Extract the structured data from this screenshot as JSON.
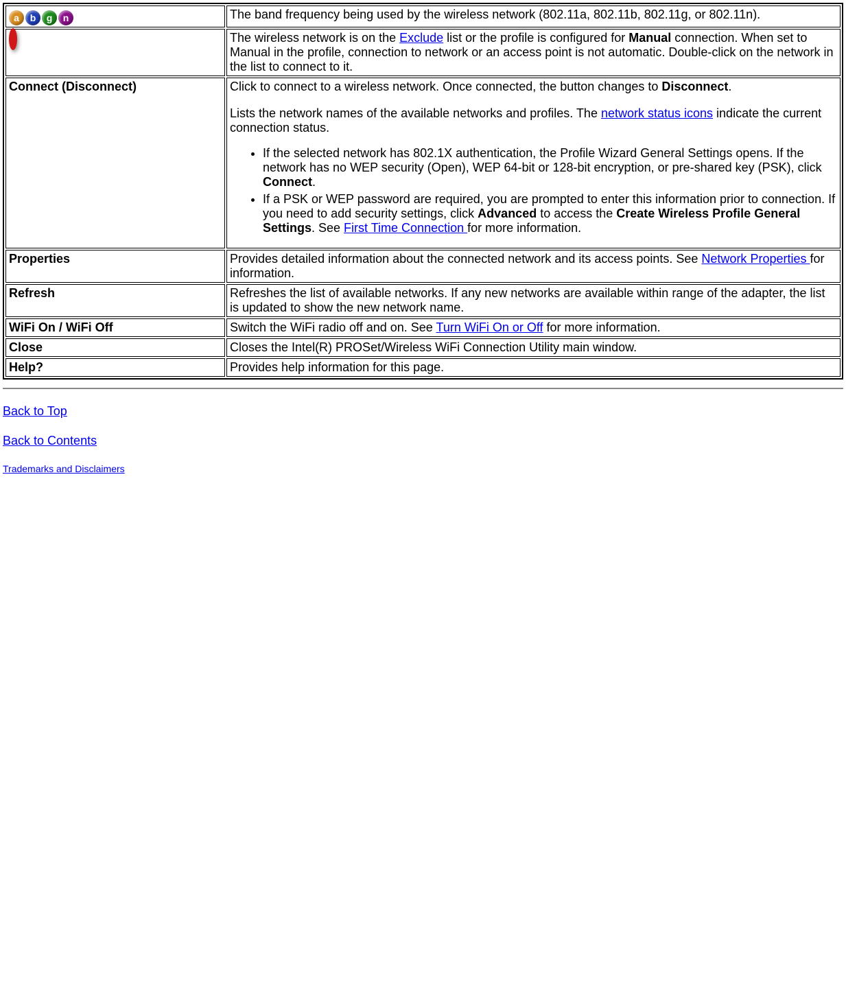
{
  "palette": {
    "link_color": "#0000ee",
    "text_color": "#000000",
    "background": "#ffffff",
    "border_color": "#000000"
  },
  "icons": {
    "abgn": {
      "a": {
        "letter": "a",
        "bg": "#d98c1f"
      },
      "b": {
        "letter": "b",
        "bg": "#1e3fb5"
      },
      "g": {
        "letter": "g",
        "bg": "#1a8a1a"
      },
      "n": {
        "letter": "n",
        "bg": "#8a0f8a"
      }
    },
    "prohibit_color": "#d01818"
  },
  "rows": {
    "band": {
      "desc": "The band frequency being used by the wireless network (802.11a, 802.11b, 802.11g, or 802.11n)."
    },
    "exclude": {
      "pre": "The wireless network is on the ",
      "link1": "Exclude",
      "mid1": " list or the profile is configured for ",
      "bold1": "Manual",
      "post": " connection. When set to Manual in the profile, connection to network or an access point is not automatic. Double-click on the network in the list to connect to it."
    },
    "connect": {
      "name": "Connect (Disconnect)",
      "p1_pre": "Click to connect to a wireless network. Once connected, the button changes to ",
      "p1_bold": "Disconnect",
      "p1_post": ".",
      "p2_pre": "Lists the network names of the available networks and profiles. The ",
      "p2_link": "network status icons",
      "p2_post": " indicate the current connection status.",
      "li1_pre": "If the selected network has 802.1X authentication, the Profile Wizard General Settings opens. If the network has no WEP security (Open), WEP 64-bit or 128-bit encryption, or pre-shared key (PSK), click ",
      "li1_bold": "Connect",
      "li1_post": ".",
      "li2_pre": "If a PSK or WEP password are required, you are prompted to enter this information prior to connection. If you need to add security settings, click ",
      "li2_bold1": "Advanced",
      "li2_mid": " to access the ",
      "li2_bold2": "Create Wireless Profile General Settings",
      "li2_mid2": ". See ",
      "li2_link": "First Time Connection ",
      "li2_post": "for more information."
    },
    "properties": {
      "name": "Properties",
      "pre": "Provides detailed information about the connected network and its access points. See ",
      "link": "Network Properties ",
      "post": "for information."
    },
    "refresh": {
      "name": "Refresh",
      "desc": "Refreshes the list of available networks. If any new networks are available within range of the adapter, the list is updated to show the new network name."
    },
    "wifi": {
      "name": "WiFi On / WiFi Off",
      "pre": "Switch the WiFi radio off and on. See ",
      "link": "Turn WiFi On or Off",
      "post": " for more information."
    },
    "close": {
      "name": "Close",
      "desc": "Closes the Intel(R) PROSet/Wireless WiFi Connection Utility main window."
    },
    "help": {
      "name": "Help?",
      "desc": "Provides help information for this page."
    }
  },
  "footer": {
    "back_top": "Back to Top",
    "back_contents": "Back to Contents",
    "trademarks": "Trademarks and Disclaimers"
  }
}
